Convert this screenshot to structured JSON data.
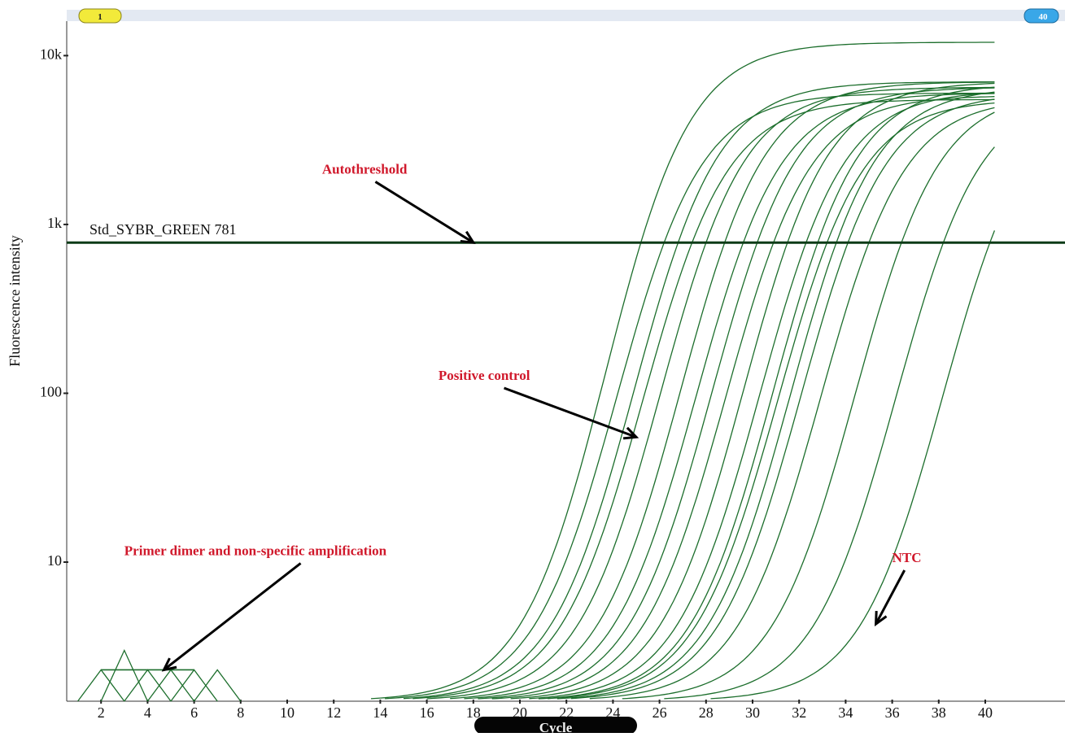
{
  "chart_data": {
    "type": "line",
    "title": "",
    "xlabel": "Cycle",
    "ylabel": "Fluorescence intensity",
    "y_scale": "log",
    "xlim": [
      1,
      41
    ],
    "ylim": [
      1.5,
      16000
    ],
    "x_ticks": [
      "2",
      "4",
      "6",
      "8",
      "10",
      "12",
      "14",
      "16",
      "18",
      "20",
      "22",
      "24",
      "26",
      "28",
      "30",
      "32",
      "34",
      "36",
      "38",
      "40"
    ],
    "y_ticks": [
      {
        "label": "10",
        "value": 10
      },
      {
        "label": "100",
        "value": 100
      },
      {
        "label": "1k",
        "value": 1000
      },
      {
        "label": "10k",
        "value": 10000
      }
    ],
    "grid": false,
    "legend": "none",
    "range_markers": {
      "start": "1",
      "end": "40"
    },
    "threshold": {
      "label": "Std_SYBR_GREEN 781",
      "value": 781
    },
    "curve_color": "#1c6e2c",
    "threshold_color": "#0d3b17",
    "annotation_color": "#d0182b",
    "annotations": [
      {
        "text": "Autothreshold",
        "x": 11.5,
        "y": 2000,
        "arrow_to": {
          "x": 18,
          "y": 781
        }
      },
      {
        "text": "Positive control",
        "x": 16.5,
        "y": 120,
        "arrow_to": {
          "x": 25,
          "y": 55
        }
      },
      {
        "text": "Primer dimer and non-specific amplification",
        "x": 3,
        "y": 11,
        "arrow_to": {
          "x": 4.7,
          "y": 2.3
        }
      },
      {
        "text": "NTC",
        "x": 36,
        "y": 10,
        "arrow_to": {
          "x": 35.3,
          "y": 4.3
        }
      }
    ],
    "series": [
      {
        "ct": 25.2,
        "plateau": 12000
      },
      {
        "ct": 26.2,
        "plateau": 6000
      },
      {
        "ct": 26.8,
        "plateau": 7000
      },
      {
        "ct": 27.4,
        "plateau": 5500
      },
      {
        "ct": 28.0,
        "plateau": 6500
      },
      {
        "ct": 28.8,
        "plateau": 7000
      },
      {
        "ct": 29.6,
        "plateau": 6000
      },
      {
        "ct": 30.2,
        "plateau": 6500
      },
      {
        "ct": 30.9,
        "plateau": 5800
      },
      {
        "ct": 31.5,
        "plateau": 7000
      },
      {
        "ct": 32.3,
        "plateau": 6200
      },
      {
        "ct": 32.8,
        "plateau": 6800
      },
      {
        "ct": 33.2,
        "plateau": 5500
      },
      {
        "ct": 33.6,
        "plateau": 6500
      },
      {
        "ct": 34.1,
        "plateau": 6000
      },
      {
        "ct": 35.0,
        "plateau": 5600
      },
      {
        "ct": 36.4,
        "plateau": 6200
      },
      {
        "ct": 38.2,
        "plateau": 6000
      },
      {
        "ct": 40.2,
        "plateau": 6000
      }
    ],
    "primer_dimer": {
      "x": [
        1,
        2,
        3,
        4,
        5,
        6,
        7
      ],
      "peaks": [
        {
          "x": 3,
          "y": 3.0
        },
        {
          "x": 2,
          "y": 2.3
        },
        {
          "x": 4,
          "y": 2.3
        },
        {
          "x": 5,
          "y": 2.3
        },
        {
          "x": 6,
          "y": 2.3
        },
        {
          "x": 7,
          "y": 2.3
        }
      ],
      "floor": 1.5
    }
  }
}
